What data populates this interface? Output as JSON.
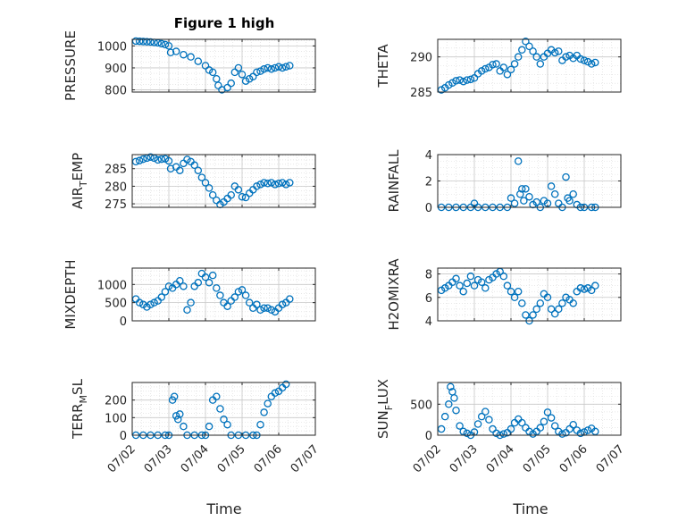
{
  "figure_title": "Figure 1 high",
  "marker_color": "#0072BD",
  "chart_data": [
    {
      "type": "scatter",
      "panel": "pressure",
      "ylabel": "PRESSURE",
      "ylim": [
        790,
        1030
      ],
      "yticks": [
        800,
        900,
        1000
      ],
      "xlim": [
        0,
        5
      ],
      "grid": true,
      "points": [
        [
          0.1,
          1022
        ],
        [
          0.2,
          1021
        ],
        [
          0.3,
          1020
        ],
        [
          0.4,
          1019
        ],
        [
          0.5,
          1018
        ],
        [
          0.6,
          1016
        ],
        [
          0.7,
          1014
        ],
        [
          0.8,
          1010
        ],
        [
          0.9,
          1006
        ],
        [
          1.0,
          1000
        ],
        [
          1.05,
          970
        ],
        [
          1.2,
          975
        ],
        [
          1.4,
          960
        ],
        [
          1.6,
          950
        ],
        [
          1.8,
          930
        ],
        [
          2.0,
          910
        ],
        [
          2.1,
          890
        ],
        [
          2.2,
          880
        ],
        [
          2.3,
          850
        ],
        [
          2.35,
          820
        ],
        [
          2.45,
          800
        ],
        [
          2.6,
          810
        ],
        [
          2.7,
          830
        ],
        [
          2.8,
          880
        ],
        [
          2.9,
          900
        ],
        [
          3.0,
          870
        ],
        [
          3.1,
          840
        ],
        [
          3.2,
          850
        ],
        [
          3.3,
          860
        ],
        [
          3.4,
          880
        ],
        [
          3.5,
          885
        ],
        [
          3.6,
          895
        ],
        [
          3.7,
          900
        ],
        [
          3.8,
          895
        ],
        [
          3.9,
          900
        ],
        [
          4.0,
          905
        ],
        [
          4.1,
          900
        ],
        [
          4.2,
          905
        ],
        [
          4.3,
          910
        ]
      ]
    },
    {
      "type": "scatter",
      "panel": "theta",
      "ylabel": "THETA",
      "ylim": [
        285,
        292.5
      ],
      "yticks": [
        285,
        290
      ],
      "xlim": [
        0,
        5
      ],
      "grid": true,
      "points": [
        [
          0.1,
          285.3
        ],
        [
          0.2,
          285.6
        ],
        [
          0.3,
          286.0
        ],
        [
          0.4,
          286.3
        ],
        [
          0.5,
          286.6
        ],
        [
          0.6,
          286.7
        ],
        [
          0.7,
          286.5
        ],
        [
          0.8,
          286.7
        ],
        [
          0.9,
          286.8
        ],
        [
          1.0,
          287.0
        ],
        [
          1.1,
          287.6
        ],
        [
          1.2,
          288.0
        ],
        [
          1.3,
          288.3
        ],
        [
          1.4,
          288.5
        ],
        [
          1.5,
          288.9
        ],
        [
          1.6,
          289.0
        ],
        [
          1.7,
          288.0
        ],
        [
          1.8,
          288.5
        ],
        [
          1.9,
          287.5
        ],
        [
          2.0,
          288.2
        ],
        [
          2.1,
          289.0
        ],
        [
          2.2,
          290.0
        ],
        [
          2.3,
          291.0
        ],
        [
          2.4,
          292.2
        ],
        [
          2.5,
          291.5
        ],
        [
          2.6,
          290.8
        ],
        [
          2.7,
          290.0
        ],
        [
          2.8,
          289.0
        ],
        [
          2.9,
          290.0
        ],
        [
          3.0,
          290.5
        ],
        [
          3.1,
          291.0
        ],
        [
          3.2,
          290.6
        ],
        [
          3.3,
          290.8
        ],
        [
          3.4,
          289.5
        ],
        [
          3.5,
          290.0
        ],
        [
          3.6,
          290.2
        ],
        [
          3.7,
          289.8
        ],
        [
          3.8,
          290.2
        ],
        [
          3.9,
          289.7
        ],
        [
          4.0,
          289.5
        ],
        [
          4.1,
          289.3
        ],
        [
          4.2,
          289.0
        ],
        [
          4.3,
          289.2
        ]
      ]
    },
    {
      "type": "scatter",
      "panel": "air_temp",
      "ylabel": "AIR_TEMP",
      "ylabel_base": "AIR",
      "ylabel_sub": "T",
      "ylabel_rest": "EMP",
      "ylim": [
        274,
        289
      ],
      "yticks": [
        275,
        280,
        285
      ],
      "xlim": [
        0,
        5
      ],
      "grid": true,
      "points": [
        [
          0.1,
          287
        ],
        [
          0.2,
          287.3
        ],
        [
          0.3,
          287.7
        ],
        [
          0.4,
          288.0
        ],
        [
          0.5,
          288.3
        ],
        [
          0.6,
          288.0
        ],
        [
          0.7,
          287.5
        ],
        [
          0.8,
          287.7
        ],
        [
          0.9,
          287.8
        ],
        [
          1.0,
          287.2
        ],
        [
          1.05,
          285.0
        ],
        [
          1.2,
          285.5
        ],
        [
          1.3,
          284.5
        ],
        [
          1.4,
          286.5
        ],
        [
          1.5,
          287.6
        ],
        [
          1.6,
          287.0
        ],
        [
          1.7,
          286.0
        ],
        [
          1.8,
          284.5
        ],
        [
          1.9,
          282.5
        ],
        [
          2.0,
          281.0
        ],
        [
          2.1,
          279.5
        ],
        [
          2.2,
          277.5
        ],
        [
          2.3,
          276.0
        ],
        [
          2.4,
          274.8
        ],
        [
          2.5,
          275.5
        ],
        [
          2.6,
          276.5
        ],
        [
          2.7,
          277.5
        ],
        [
          2.8,
          280.0
        ],
        [
          2.9,
          279.0
        ],
        [
          3.0,
          277.0
        ],
        [
          3.1,
          276.8
        ],
        [
          3.2,
          278.0
        ],
        [
          3.3,
          279.0
        ],
        [
          3.4,
          280.0
        ],
        [
          3.5,
          280.5
        ],
        [
          3.6,
          281.0
        ],
        [
          3.7,
          280.8
        ],
        [
          3.8,
          281.0
        ],
        [
          3.9,
          280.5
        ],
        [
          4.0,
          280.8
        ],
        [
          4.1,
          281.0
        ],
        [
          4.2,
          280.5
        ],
        [
          4.3,
          281.0
        ]
      ]
    },
    {
      "type": "scatter",
      "panel": "rainfall",
      "ylabel": "RAINFALL",
      "ylim": [
        0,
        4
      ],
      "yticks": [
        0,
        2,
        4
      ],
      "xlim": [
        0,
        5
      ],
      "grid": true,
      "points": [
        [
          0.1,
          0
        ],
        [
          0.3,
          0
        ],
        [
          0.5,
          0
        ],
        [
          0.7,
          0
        ],
        [
          0.9,
          0
        ],
        [
          1.0,
          0.3
        ],
        [
          1.1,
          0
        ],
        [
          1.3,
          0
        ],
        [
          1.5,
          0
        ],
        [
          1.7,
          0
        ],
        [
          1.9,
          0
        ],
        [
          2.0,
          0.7
        ],
        [
          2.1,
          0.3
        ],
        [
          2.2,
          3.5
        ],
        [
          2.25,
          1.0
        ],
        [
          2.3,
          1.4
        ],
        [
          2.35,
          0.5
        ],
        [
          2.4,
          1.4
        ],
        [
          2.5,
          0.8
        ],
        [
          2.6,
          0.2
        ],
        [
          2.7,
          0.4
        ],
        [
          2.8,
          0
        ],
        [
          2.9,
          0.5
        ],
        [
          3.0,
          0.3
        ],
        [
          3.1,
          1.6
        ],
        [
          3.2,
          1.0
        ],
        [
          3.3,
          0.3
        ],
        [
          3.4,
          0
        ],
        [
          3.5,
          2.3
        ],
        [
          3.55,
          0.7
        ],
        [
          3.6,
          0.5
        ],
        [
          3.7,
          1.0
        ],
        [
          3.8,
          0.2
        ],
        [
          3.9,
          0
        ],
        [
          4.0,
          0
        ],
        [
          4.2,
          0
        ],
        [
          4.3,
          0
        ]
      ]
    },
    {
      "type": "scatter",
      "panel": "mixdepth",
      "ylabel": "MIXDEPTH",
      "ylim": [
        0,
        1450
      ],
      "yticks": [
        0,
        500,
        1000
      ],
      "xlim": [
        0,
        5
      ],
      "grid": true,
      "points": [
        [
          0.1,
          600
        ],
        [
          0.2,
          500
        ],
        [
          0.3,
          450
        ],
        [
          0.4,
          380
        ],
        [
          0.5,
          450
        ],
        [
          0.6,
          500
        ],
        [
          0.7,
          550
        ],
        [
          0.8,
          650
        ],
        [
          0.9,
          800
        ],
        [
          1.0,
          950
        ],
        [
          1.1,
          900
        ],
        [
          1.2,
          1000
        ],
        [
          1.3,
          1100
        ],
        [
          1.4,
          950
        ],
        [
          1.5,
          300
        ],
        [
          1.6,
          500
        ],
        [
          1.7,
          950
        ],
        [
          1.8,
          1050
        ],
        [
          1.9,
          1300
        ],
        [
          2.0,
          1200
        ],
        [
          2.1,
          1050
        ],
        [
          2.2,
          1250
        ],
        [
          2.3,
          900
        ],
        [
          2.4,
          700
        ],
        [
          2.5,
          500
        ],
        [
          2.6,
          400
        ],
        [
          2.7,
          550
        ],
        [
          2.8,
          650
        ],
        [
          2.9,
          800
        ],
        [
          3.0,
          850
        ],
        [
          3.1,
          700
        ],
        [
          3.2,
          500
        ],
        [
          3.3,
          350
        ],
        [
          3.4,
          450
        ],
        [
          3.5,
          300
        ],
        [
          3.6,
          350
        ],
        [
          3.7,
          350
        ],
        [
          3.8,
          300
        ],
        [
          3.9,
          250
        ],
        [
          4.0,
          350
        ],
        [
          4.1,
          450
        ],
        [
          4.2,
          500
        ],
        [
          4.3,
          600
        ]
      ]
    },
    {
      "type": "scatter",
      "panel": "h2omixra",
      "ylabel": "H2OMIXRA",
      "ylim": [
        4,
        8.5
      ],
      "yticks": [
        4,
        6,
        8
      ],
      "xlim": [
        0,
        5
      ],
      "grid": true,
      "points": [
        [
          0.1,
          6.6
        ],
        [
          0.2,
          6.8
        ],
        [
          0.3,
          7.0
        ],
        [
          0.4,
          7.3
        ],
        [
          0.5,
          7.6
        ],
        [
          0.6,
          7.0
        ],
        [
          0.7,
          6.5
        ],
        [
          0.8,
          7.2
        ],
        [
          0.9,
          7.8
        ],
        [
          1.0,
          7.0
        ],
        [
          1.1,
          7.5
        ],
        [
          1.2,
          7.3
        ],
        [
          1.3,
          6.8
        ],
        [
          1.4,
          7.5
        ],
        [
          1.5,
          7.7
        ],
        [
          1.6,
          8.0
        ],
        [
          1.7,
          8.2
        ],
        [
          1.8,
          7.8
        ],
        [
          1.9,
          7.0
        ],
        [
          2.0,
          6.5
        ],
        [
          2.1,
          6.0
        ],
        [
          2.2,
          6.5
        ],
        [
          2.3,
          5.5
        ],
        [
          2.4,
          4.5
        ],
        [
          2.5,
          4.0
        ],
        [
          2.6,
          4.5
        ],
        [
          2.7,
          5.0
        ],
        [
          2.8,
          5.5
        ],
        [
          2.9,
          6.3
        ],
        [
          3.0,
          6.0
        ],
        [
          3.1,
          5.0
        ],
        [
          3.2,
          4.6
        ],
        [
          3.3,
          5.0
        ],
        [
          3.4,
          5.5
        ],
        [
          3.5,
          6.0
        ],
        [
          3.6,
          5.8
        ],
        [
          3.7,
          5.5
        ],
        [
          3.8,
          6.5
        ],
        [
          3.9,
          6.8
        ],
        [
          4.0,
          6.7
        ],
        [
          4.1,
          6.8
        ],
        [
          4.2,
          6.6
        ],
        [
          4.3,
          7.0
        ]
      ]
    },
    {
      "type": "scatter",
      "panel": "terr_msl",
      "ylabel": "TERR_MSL",
      "ylabel_base": "TERR",
      "ylabel_sub": "M",
      "ylabel_rest": "SL",
      "ylim": [
        0,
        300
      ],
      "yticks": [
        0,
        100,
        200
      ],
      "xlim": [
        0,
        5
      ],
      "grid": true,
      "points": [
        [
          0.1,
          0
        ],
        [
          0.3,
          0
        ],
        [
          0.5,
          0
        ],
        [
          0.7,
          0
        ],
        [
          0.9,
          0
        ],
        [
          1.0,
          0
        ],
        [
          1.1,
          200
        ],
        [
          1.15,
          220
        ],
        [
          1.2,
          110
        ],
        [
          1.25,
          90
        ],
        [
          1.3,
          120
        ],
        [
          1.4,
          50
        ],
        [
          1.5,
          0
        ],
        [
          1.7,
          0
        ],
        [
          1.9,
          0
        ],
        [
          2.0,
          0
        ],
        [
          2.1,
          50
        ],
        [
          2.2,
          200
        ],
        [
          2.3,
          220
        ],
        [
          2.4,
          150
        ],
        [
          2.5,
          90
        ],
        [
          2.6,
          60
        ],
        [
          2.7,
          0
        ],
        [
          2.9,
          0
        ],
        [
          3.1,
          0
        ],
        [
          3.3,
          0
        ],
        [
          3.4,
          0
        ],
        [
          3.5,
          60
        ],
        [
          3.6,
          130
        ],
        [
          3.7,
          180
        ],
        [
          3.8,
          220
        ],
        [
          3.9,
          240
        ],
        [
          4.0,
          250
        ],
        [
          4.1,
          270
        ],
        [
          4.2,
          290
        ]
      ]
    },
    {
      "type": "scatter",
      "panel": "sun_flux",
      "ylabel": "SUN_FLUX",
      "ylabel_base": "SUN",
      "ylabel_sub": "F",
      "ylabel_rest": "LUX",
      "ylim": [
        0,
        850
      ],
      "yticks": [
        0,
        500
      ],
      "xlim": [
        0,
        5
      ],
      "grid": true,
      "points": [
        [
          0.1,
          100
        ],
        [
          0.2,
          300
        ],
        [
          0.3,
          500
        ],
        [
          0.35,
          780
        ],
        [
          0.4,
          700
        ],
        [
          0.45,
          600
        ],
        [
          0.5,
          400
        ],
        [
          0.6,
          150
        ],
        [
          0.7,
          60
        ],
        [
          0.8,
          30
        ],
        [
          0.9,
          0
        ],
        [
          1.0,
          50
        ],
        [
          1.1,
          180
        ],
        [
          1.2,
          300
        ],
        [
          1.3,
          380
        ],
        [
          1.4,
          250
        ],
        [
          1.5,
          100
        ],
        [
          1.6,
          30
        ],
        [
          1.7,
          0
        ],
        [
          1.8,
          20
        ],
        [
          1.9,
          40
        ],
        [
          2.0,
          100
        ],
        [
          2.1,
          200
        ],
        [
          2.2,
          260
        ],
        [
          2.3,
          200
        ],
        [
          2.4,
          120
        ],
        [
          2.5,
          60
        ],
        [
          2.6,
          20
        ],
        [
          2.7,
          60
        ],
        [
          2.8,
          120
        ],
        [
          2.9,
          220
        ],
        [
          3.0,
          370
        ],
        [
          3.1,
          280
        ],
        [
          3.2,
          150
        ],
        [
          3.3,
          60
        ],
        [
          3.4,
          20
        ],
        [
          3.5,
          40
        ],
        [
          3.6,
          100
        ],
        [
          3.7,
          170
        ],
        [
          3.8,
          80
        ],
        [
          3.9,
          30
        ],
        [
          4.0,
          50
        ],
        [
          4.1,
          80
        ],
        [
          4.2,
          110
        ],
        [
          4.3,
          60
        ]
      ]
    }
  ],
  "xticklabels": [
    "07/02",
    "07/03",
    "07/04",
    "07/05",
    "07/06",
    "07/07"
  ],
  "xlabel": "Time"
}
